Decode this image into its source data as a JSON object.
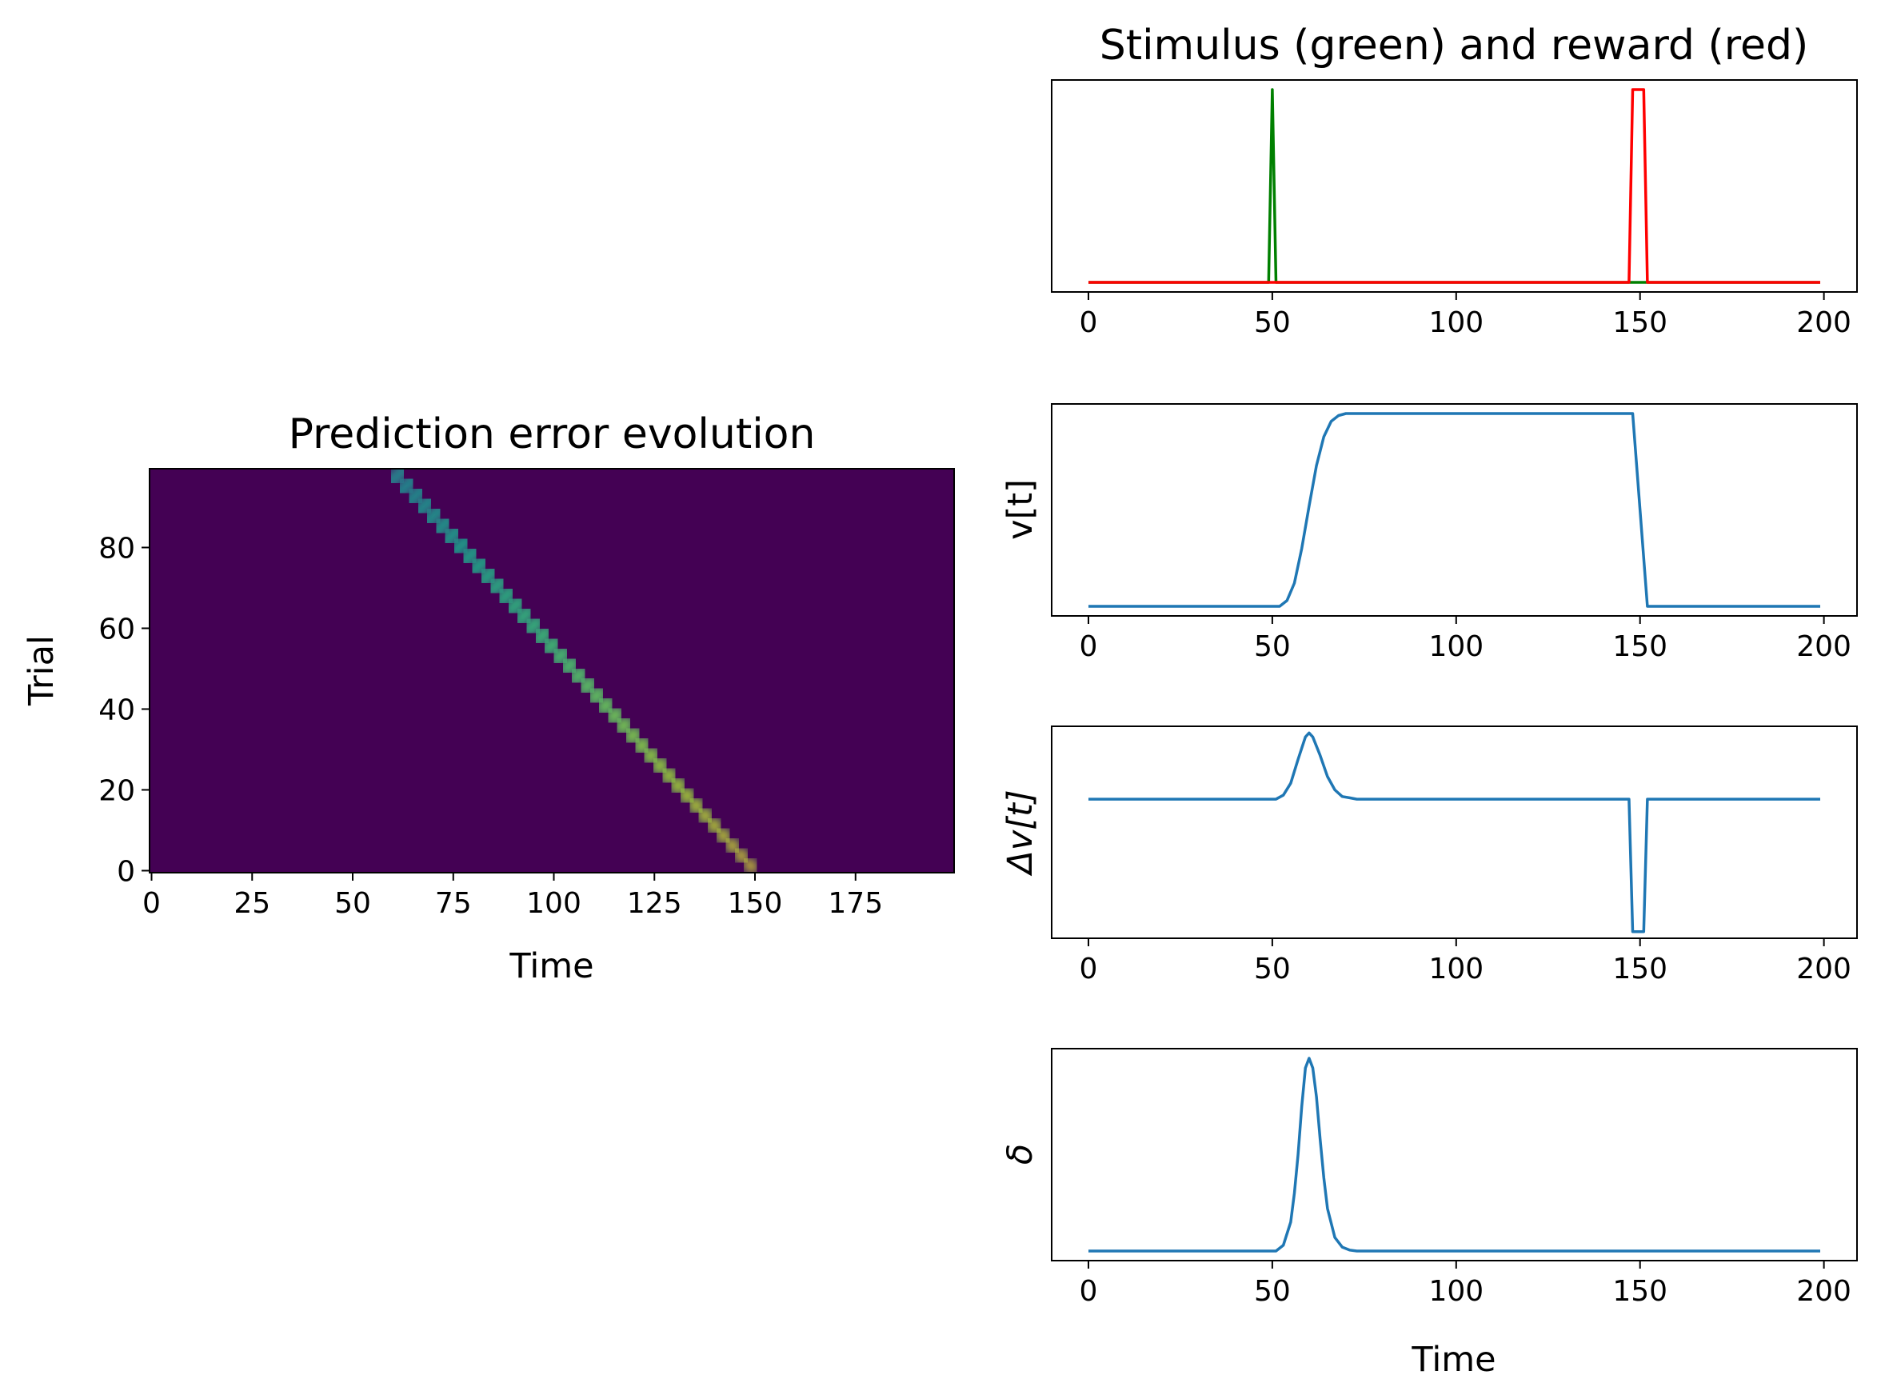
{
  "colors": {
    "stimulus": "#008000",
    "reward": "#ff0000",
    "series": "#1f77b4",
    "heatmap_background": "#440154",
    "axes": "#000000"
  },
  "chart_data": [
    {
      "id": "heatmap",
      "type": "heatmap",
      "title": "Prediction error evolution",
      "xlabel": "Time",
      "ylabel": "Trial",
      "xlim": [
        -0.5,
        199.5
      ],
      "ylim": [
        -0.5,
        99.5
      ],
      "xticks": [
        0,
        25,
        50,
        75,
        100,
        125,
        150,
        175
      ],
      "yticks": [
        0,
        20,
        40,
        60,
        80
      ],
      "colormap": "viridis",
      "ridge": {
        "trial_start": 0,
        "time_start": 150,
        "trial_end": 99,
        "time_end": 60,
        "peak_start": 1.0,
        "peak_end": 0.45
      }
    },
    {
      "id": "stimulus-reward",
      "type": "line",
      "title": "Stimulus (green) and reward (red)",
      "xlabel": "",
      "ylabel": "",
      "xlim": [
        -10,
        209
      ],
      "ylim": [
        -0.05,
        1.05
      ],
      "xticks": [
        0,
        50,
        100,
        150,
        200
      ],
      "yticks": [],
      "series": [
        {
          "color": "#008000",
          "x": [
            0,
            49,
            50,
            51,
            199
          ],
          "y": [
            0,
            0,
            1,
            0,
            0
          ]
        },
        {
          "color": "#ff0000",
          "x": [
            0,
            147,
            148,
            149,
            150,
            151,
            152,
            199
          ],
          "y": [
            0,
            0,
            1,
            1,
            1,
            1,
            0,
            0
          ]
        }
      ]
    },
    {
      "id": "value",
      "type": "line",
      "title": "",
      "xlabel": "",
      "ylabel": "v[t]",
      "xlim": [
        -10,
        209
      ],
      "ylim": [
        -0.05,
        1.05
      ],
      "xticks": [
        0,
        50,
        100,
        150,
        200
      ],
      "yticks": [],
      "series": [
        {
          "color": "#1f77b4",
          "x": [
            0,
            52,
            54,
            56,
            58,
            60,
            62,
            64,
            66,
            68,
            70,
            74,
            80,
            100,
            147,
            148,
            152,
            199
          ],
          "y": [
            0,
            0,
            0.03,
            0.12,
            0.3,
            0.52,
            0.73,
            0.88,
            0.96,
            0.99,
            1.0,
            1.0,
            1.0,
            1.0,
            1.0,
            1.0,
            0,
            0
          ]
        }
      ]
    },
    {
      "id": "delta-value",
      "type": "line",
      "title": "",
      "xlabel": "",
      "ylabel": "Δv[t]",
      "xlim": [
        -10,
        209
      ],
      "ylim": [
        -1.05,
        0.55
      ],
      "xticks": [
        0,
        50,
        100,
        150,
        200
      ],
      "yticks": [],
      "series": [
        {
          "color": "#1f77b4",
          "x": [
            0,
            51,
            53,
            55,
            57,
            59,
            60,
            61,
            63,
            65,
            67,
            69,
            71,
            73,
            147,
            148,
            149,
            150,
            151,
            152,
            199
          ],
          "y": [
            0,
            0,
            0.03,
            0.12,
            0.3,
            0.47,
            0.5,
            0.47,
            0.33,
            0.17,
            0.07,
            0.02,
            0.01,
            0,
            0,
            -1.0,
            -1.0,
            -1.0,
            -1.0,
            0,
            0
          ]
        }
      ]
    },
    {
      "id": "delta",
      "type": "line",
      "title": "",
      "xlabel": "Time",
      "ylabel": "δ",
      "xlim": [
        -10,
        209
      ],
      "ylim": [
        -0.05,
        1.05
      ],
      "xticks": [
        0,
        50,
        100,
        150,
        200
      ],
      "yticks": [],
      "series": [
        {
          "color": "#1f77b4",
          "x": [
            0,
            51,
            53,
            55,
            56,
            57,
            58,
            59,
            60,
            61,
            62,
            63,
            64,
            65,
            67,
            69,
            71,
            73,
            199
          ],
          "y": [
            0,
            0,
            0.03,
            0.15,
            0.3,
            0.5,
            0.75,
            0.95,
            1.0,
            0.95,
            0.8,
            0.58,
            0.38,
            0.22,
            0.07,
            0.02,
            0.005,
            0,
            0
          ]
        }
      ]
    }
  ]
}
